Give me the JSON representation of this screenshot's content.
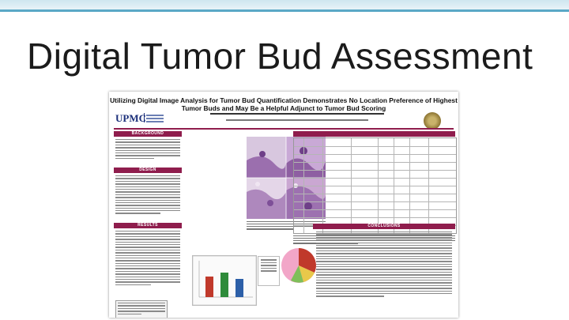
{
  "slide": {
    "title": "Digital Tumor Bud Assessment"
  },
  "poster": {
    "title_line1": "Utilizing Digital Image Analysis for Tumor Bud Quantification Demonstrates No Location Preference of Highest",
    "title_line2": "Tumor Buds and May Be a Helpful Adjunct to Tumor Bud Scoring",
    "logo_text": "UPMC",
    "sections": {
      "background": "BACKGROUND",
      "design": "DESIGN",
      "results": "RESULTS",
      "conclusions": "CONCLUSIONS"
    }
  },
  "colors": {
    "accent": "#8f1d4d",
    "slide_bar": "#5aa8c6",
    "chart_bar_red": "#c0392b",
    "chart_bar_green": "#2e8b3a",
    "chart_bar_blue": "#2c5fa8",
    "pie_pink": "#f2a6c8",
    "pie_red": "#c0392b",
    "pie_yellow": "#e8c84a",
    "pie_green": "#7fbf5a"
  }
}
